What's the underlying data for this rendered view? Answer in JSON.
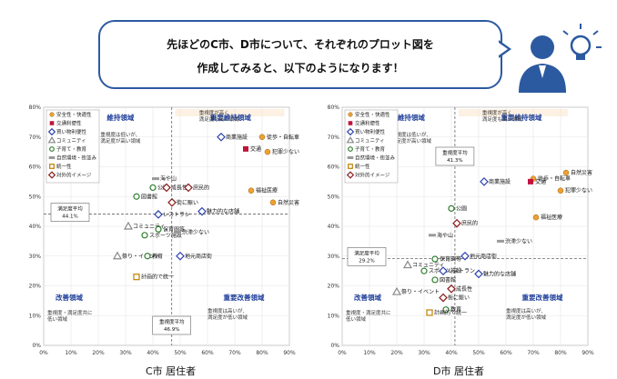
{
  "speech": {
    "line1": "先ほどのC市、D市について、それぞれのプロット図を",
    "line2": "作成してみると、以下のようになります！"
  },
  "legend_items": [
    {
      "label": "安全性・快適性",
      "marker": "circle",
      "color": "#f0a030"
    },
    {
      "label": "交通利便性",
      "marker": "square",
      "color": "#c0143c"
    },
    {
      "label": "買い物利便性",
      "marker": "diamond-open",
      "color": "#2a40b0"
    },
    {
      "label": "コミュニティ",
      "marker": "triangle-open",
      "color": "#888888"
    },
    {
      "label": "子育て・教育",
      "marker": "circle-open",
      "color": "#2f7f2f"
    },
    {
      "label": "自然環境・街並み",
      "marker": "dash",
      "color": "#999999"
    },
    {
      "label": "統一性",
      "marker": "square-open",
      "color": "#c08000"
    },
    {
      "label": "対外的イメージ",
      "marker": "diamond-open",
      "color": "#8b1a1a"
    }
  ],
  "quadrants": {
    "maintain": "維持領域",
    "key_maintain": "重要維持領域",
    "improve": "改善領域",
    "key_improve": "重要改善領域",
    "note_key_maintain": "重視度が高く\n満足度も高い領域",
    "note_maintain": "重視度は低いが、\n満足度が高い領域",
    "note_improve": "重視度・満足度共に\n低い領域",
    "note_key_improve": "重視度は高いが、\n満足度が低い領域"
  },
  "avg_labels": {
    "satisfaction": "満足度平均",
    "importance": "重視度平均"
  },
  "chart_data": [
    {
      "type": "scatter",
      "caption": "C市 居住者",
      "xlim": [
        0,
        90
      ],
      "ylim": [
        0,
        80
      ],
      "x_ticks": [
        "0%",
        "10%",
        "20%",
        "30%",
        "40%",
        "50%",
        "60%",
        "70%",
        "80%",
        "90%"
      ],
      "y_ticks": [
        "0%",
        "10%",
        "20%",
        "30%",
        "40%",
        "50%",
        "60%",
        "70%",
        "80%"
      ],
      "grid": true,
      "legend": "top-left",
      "avg_satisfaction": "44.1%",
      "avg_importance": "46.9%",
      "avg_x": 46.9,
      "avg_y": 44.1,
      "points": [
        {
          "label": "徒歩・自転車",
          "x": 80,
          "y": 70,
          "cat": 0
        },
        {
          "label": "犯罪少ない",
          "x": 82,
          "y": 65,
          "cat": 0
        },
        {
          "label": "福祉医療",
          "x": 76,
          "y": 52,
          "cat": 0
        },
        {
          "label": "自然災害",
          "x": 84,
          "y": 48,
          "cat": 0
        },
        {
          "label": "商業施設",
          "x": 65,
          "y": 70,
          "cat": 2
        },
        {
          "label": "交通",
          "x": 74,
          "y": 66,
          "cat": 1
        },
        {
          "label": "海や山",
          "x": 41,
          "y": 56,
          "cat": 5
        },
        {
          "label": "公園",
          "x": 40,
          "y": 53,
          "cat": 4
        },
        {
          "label": "成長性",
          "x": 45,
          "y": 53,
          "cat": 7
        },
        {
          "label": "庶民的",
          "x": 53,
          "y": 53,
          "cat": 7
        },
        {
          "label": "図書館",
          "x": 34,
          "y": 50,
          "cat": 4
        },
        {
          "label": "街に賑い",
          "x": 47,
          "y": 48,
          "cat": 7
        },
        {
          "label": "レストラン",
          "x": 42,
          "y": 44,
          "cat": 2
        },
        {
          "label": "魅力的な店舗",
          "x": 58,
          "y": 45,
          "cat": 2
        },
        {
          "label": "コミュニティ",
          "x": 31,
          "y": 40,
          "cat": 3
        },
        {
          "label": "保育園等",
          "x": 42,
          "y": 39,
          "cat": 4
        },
        {
          "label": "スポーツ施設",
          "x": 37,
          "y": 37,
          "cat": 4
        },
        {
          "label": "渋滞少ない",
          "x": 49,
          "y": 38,
          "cat": 5
        },
        {
          "label": "祭り・イベント",
          "x": 27,
          "y": 30,
          "cat": 3
        },
        {
          "label": "教育",
          "x": 38,
          "y": 30,
          "cat": 4
        },
        {
          "label": "地元商店街",
          "x": 50,
          "y": 30,
          "cat": 2
        },
        {
          "label": "計画的で統一",
          "x": 34,
          "y": 23,
          "cat": 6
        }
      ]
    },
    {
      "type": "scatter",
      "caption": "D市 居住者",
      "xlim": [
        0,
        90
      ],
      "ylim": [
        0,
        80
      ],
      "x_ticks": [
        "0%",
        "10%",
        "20%",
        "30%",
        "40%",
        "50%",
        "60%",
        "70%",
        "80%",
        "90%"
      ],
      "y_ticks": [
        "0%",
        "10%",
        "20%",
        "30%",
        "40%",
        "50%",
        "60%",
        "70%",
        "80%"
      ],
      "grid": true,
      "legend": "top-left",
      "avg_satisfaction": "29.2%",
      "avg_importance": "41.3%",
      "avg_x": 41.3,
      "avg_y": 29.2,
      "points": [
        {
          "label": "自然災害",
          "x": 82,
          "y": 58,
          "cat": 0
        },
        {
          "label": "徒歩・自転車",
          "x": 70,
          "y": 56,
          "cat": 0
        },
        {
          "label": "商業施設",
          "x": 52,
          "y": 55,
          "cat": 2
        },
        {
          "label": "交通",
          "x": 69,
          "y": 55,
          "cat": 1
        },
        {
          "label": "犯罪少ない",
          "x": 80,
          "y": 52,
          "cat": 0
        },
        {
          "label": "公園",
          "x": 40,
          "y": 46,
          "cat": 4
        },
        {
          "label": "庶民的",
          "x": 42,
          "y": 41,
          "cat": 7
        },
        {
          "label": "福祉医療",
          "x": 71,
          "y": 43,
          "cat": 0
        },
        {
          "label": "海や山",
          "x": 33,
          "y": 37,
          "cat": 5
        },
        {
          "label": "渋滞少ない",
          "x": 58,
          "y": 35,
          "cat": 5
        },
        {
          "label": "地元商店街",
          "x": 45,
          "y": 30,
          "cat": 2
        },
        {
          "label": "保育園等",
          "x": 34,
          "y": 29,
          "cat": 4
        },
        {
          "label": "コミュニティ",
          "x": 24,
          "y": 27,
          "cat": 3
        },
        {
          "label": "スポーツ施設",
          "x": 30,
          "y": 25,
          "cat": 4
        },
        {
          "label": "レストラン",
          "x": 37,
          "y": 25,
          "cat": 2
        },
        {
          "label": "魅力的な店舗",
          "x": 50,
          "y": 24,
          "cat": 2
        },
        {
          "label": "図書館",
          "x": 34,
          "y": 22,
          "cat": 4
        },
        {
          "label": "成長性",
          "x": 40,
          "y": 19,
          "cat": 7
        },
        {
          "label": "祭り・イベント",
          "x": 20,
          "y": 18,
          "cat": 3
        },
        {
          "label": "街に賑い",
          "x": 37,
          "y": 16,
          "cat": 7
        },
        {
          "label": "教育",
          "x": 38,
          "y": 12,
          "cat": 4
        },
        {
          "label": "計画的で統一",
          "x": 32,
          "y": 11,
          "cat": 6
        }
      ]
    }
  ]
}
